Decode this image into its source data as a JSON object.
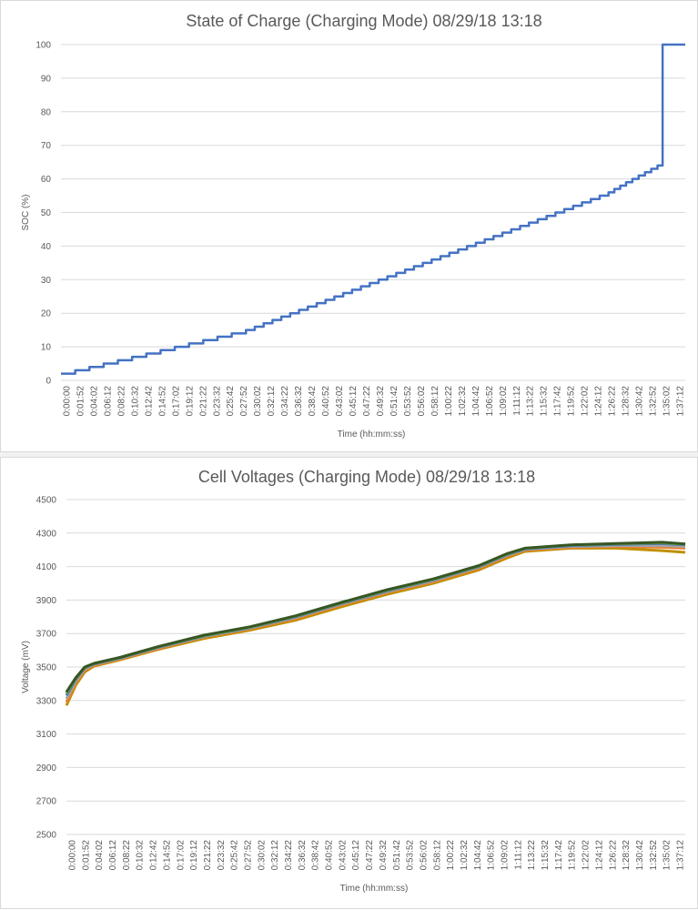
{
  "chart_data": [
    {
      "type": "line",
      "title": "State of Charge (Charging Mode) 08/29/18 13:18",
      "xlabel": "Time (hh:mm:ss)",
      "ylabel": "SOC (%)",
      "ylim": [
        0,
        100
      ],
      "yticks": [
        "0",
        "10",
        "20",
        "30",
        "40",
        "50",
        "60",
        "70",
        "80",
        "90",
        "100"
      ],
      "grid": true,
      "xticks": [
        "0:00:00",
        "0:01:52",
        "0:04:02",
        "0:06:12",
        "0:08:22",
        "0:10:32",
        "0:12:42",
        "0:14:52",
        "0:17:02",
        "0:19:12",
        "0:21:22",
        "0:23:32",
        "0:25:42",
        "0:27:52",
        "0:30:02",
        "0:32:12",
        "0:34:22",
        "0:36:32",
        "0:38:42",
        "0:40:52",
        "0:43:02",
        "0:45:12",
        "0:47:22",
        "0:49:32",
        "0:51:42",
        "0:53:52",
        "0:56:02",
        "0:58:12",
        "1:00:22",
        "1:02:32",
        "1:04:42",
        "1:06:52",
        "1:09:02",
        "1:11:12",
        "1:13:22",
        "1:15:32",
        "1:17:42",
        "1:19:52",
        "1:22:02",
        "1:24:12",
        "1:26:22",
        "1:28:32",
        "1:30:42",
        "1:32:52",
        "1:35:02",
        "1:37:12"
      ],
      "series": [
        {
          "color": "#4472c4",
          "x": [
            0,
            20,
            59.2,
            61.1,
            64.5,
            65.0,
            66.5
          ],
          "y": [
            2,
            15,
            56,
            59,
            64,
            64,
            100
          ],
          "step": true
        }
      ]
    },
    {
      "type": "line",
      "title": "Cell Voltages (Charging Mode) 08/29/18 13:18",
      "xlabel": "Time (hh:mm:ss)",
      "ylabel": "Voltage (mV)",
      "ylim": [
        2500,
        4500
      ],
      "yticks": [
        "2500",
        "2700",
        "2900",
        "3100",
        "3300",
        "3500",
        "3700",
        "3900",
        "4100",
        "4300",
        "4500"
      ],
      "grid": true,
      "xticks": [
        "0:00:00",
        "0:01:52",
        "0:04:02",
        "0:06:12",
        "0:08:22",
        "0:10:32",
        "0:12:42",
        "0:14:52",
        "0:17:02",
        "0:19:12",
        "0:21:22",
        "0:23:32",
        "0:25:42",
        "0:27:52",
        "0:30:02",
        "0:32:12",
        "0:34:22",
        "0:36:32",
        "0:38:42",
        "0:40:52",
        "0:43:02",
        "0:45:12",
        "0:47:22",
        "0:49:32",
        "0:51:42",
        "0:53:52",
        "0:56:02",
        "0:58:12",
        "1:00:22",
        "1:02:32",
        "1:04:42",
        "1:06:52",
        "1:09:02",
        "1:11:12",
        "1:13:22",
        "1:15:32",
        "1:17:42",
        "1:19:52",
        "1:22:02",
        "1:24:12",
        "1:26:22",
        "1:28:32",
        "1:30:42",
        "1:32:52",
        "1:35:02",
        "1:37:12"
      ],
      "series": [
        {
          "color": "#bf9000",
          "x": [
            0,
            1,
            2,
            3,
            6,
            10,
            15,
            20,
            25,
            30,
            35,
            40,
            45,
            48,
            50,
            55,
            60,
            65,
            67.5
          ],
          "y": [
            3270,
            3390,
            3470,
            3505,
            3545,
            3605,
            3670,
            3720,
            3780,
            3860,
            3935,
            4000,
            4080,
            4150,
            4190,
            4210,
            4210,
            4195,
            4185
          ]
        },
        {
          "color": "#ed7d31",
          "x": [
            0,
            1,
            2,
            3,
            6,
            10,
            15,
            20,
            25,
            30,
            35,
            40,
            45,
            48,
            50,
            55,
            60,
            65,
            67.5
          ],
          "y": [
            3290,
            3405,
            3480,
            3510,
            3550,
            3610,
            3678,
            3728,
            3790,
            3870,
            3945,
            4010,
            4090,
            4160,
            4198,
            4215,
            4220,
            4215,
            4210
          ]
        },
        {
          "color": "#a5a5a5",
          "x": [
            0,
            1,
            2,
            3,
            6,
            10,
            15,
            20,
            25,
            30,
            35,
            40,
            45,
            48,
            50,
            55,
            60,
            65,
            67.5
          ],
          "y": [
            3310,
            3415,
            3488,
            3515,
            3553,
            3615,
            3682,
            3732,
            3796,
            3876,
            3950,
            4015,
            4096,
            4166,
            4202,
            4220,
            4225,
            4225,
            4220
          ]
        },
        {
          "color": "#4472c4",
          "x": [
            0,
            1,
            2,
            3,
            6,
            10,
            15,
            20,
            25,
            30,
            35,
            40,
            45,
            48,
            50,
            55,
            60,
            65,
            67.5
          ],
          "y": [
            3330,
            3425,
            3495,
            3518,
            3556,
            3618,
            3685,
            3735,
            3800,
            3880,
            3955,
            4020,
            4100,
            4170,
            4205,
            4225,
            4232,
            4238,
            4230
          ]
        },
        {
          "color": "#70ad47",
          "x": [
            0,
            1,
            2,
            3,
            6,
            10,
            15,
            20,
            25,
            30,
            35,
            40,
            45,
            48,
            50,
            55,
            60,
            65,
            67.5
          ],
          "y": [
            3340,
            3430,
            3498,
            3520,
            3558,
            3620,
            3687,
            3737,
            3803,
            3883,
            3958,
            4023,
            4103,
            4173,
            4208,
            4228,
            4236,
            4242,
            4232
          ]
        },
        {
          "color": "#375623",
          "x": [
            0,
            1,
            2,
            3,
            6,
            10,
            15,
            20,
            25,
            30,
            35,
            40,
            45,
            48,
            50,
            55,
            60,
            65,
            67.5
          ],
          "y": [
            3350,
            3435,
            3500,
            3522,
            3560,
            3622,
            3690,
            3740,
            3806,
            3886,
            3962,
            4026,
            4106,
            4176,
            4210,
            4230,
            4238,
            4245,
            4235
          ]
        }
      ]
    }
  ]
}
